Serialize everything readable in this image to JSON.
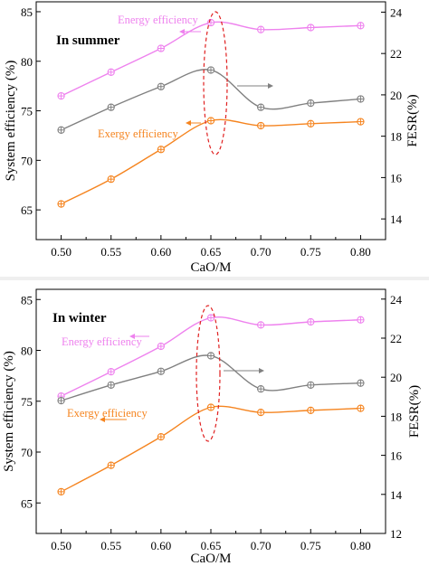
{
  "chart_data": [
    {
      "type": "line",
      "annotation": "In summer",
      "xlabel": "CaO/M",
      "ylabel": "System efficiency (%)",
      "y2label": "FESR(%)",
      "xlim": [
        0.475,
        0.825
      ],
      "ylim": [
        62,
        86
      ],
      "y2lim": [
        13.0,
        24.5
      ],
      "x_ticks": [
        "0.50",
        "0.55",
        "0.60",
        "0.65",
        "0.70",
        "0.75",
        "0.80"
      ],
      "y_ticks": [
        "65",
        "70",
        "75",
        "80",
        "85"
      ],
      "y2_ticks": [
        "14",
        "16",
        "18",
        "20",
        "22",
        "24"
      ],
      "x": [
        0.5,
        0.55,
        0.6,
        0.65,
        0.7,
        0.75,
        0.8
      ],
      "series": [
        {
          "name": "Energy efficiency",
          "axis": "left",
          "color": "#ee82ee",
          "values": [
            76.5,
            78.9,
            81.3,
            83.9,
            83.2,
            83.4,
            83.6
          ]
        },
        {
          "axis": "right",
          "color": "#808080",
          "values": [
            18.3,
            19.4,
            20.4,
            21.2,
            19.4,
            19.6,
            19.8
          ]
        },
        {
          "name": "Exergy efficiency",
          "axis": "left",
          "color": "#f5841f",
          "values": [
            65.6,
            68.1,
            71.1,
            74.0,
            73.5,
            73.7,
            73.9
          ]
        }
      ]
    },
    {
      "type": "line",
      "annotation": "In winter",
      "xlabel": "CaO/M",
      "ylabel": "System efficiency (%)",
      "y2label": "FESR(%)",
      "xlim": [
        0.475,
        0.825
      ],
      "ylim": [
        62,
        86
      ],
      "y2lim": [
        12,
        24.5
      ],
      "x_ticks": [
        "0.50",
        "0.55",
        "0.60",
        "0.65",
        "0.70",
        "0.75",
        "0.80"
      ],
      "y_ticks": [
        "65",
        "70",
        "75",
        "80",
        "85"
      ],
      "y2_ticks": [
        "12",
        "14",
        "16",
        "18",
        "20",
        "22",
        "24"
      ],
      "x": [
        0.5,
        0.55,
        0.6,
        0.65,
        0.7,
        0.75,
        0.8
      ],
      "series": [
        {
          "name": "Energy efficiency",
          "axis": "left",
          "color": "#ee82ee",
          "values": [
            75.5,
            77.9,
            80.4,
            83.2,
            82.5,
            82.8,
            83.0
          ]
        },
        {
          "axis": "right",
          "color": "#808080",
          "values": [
            18.8,
            19.6,
            20.3,
            21.1,
            19.4,
            19.6,
            19.7
          ]
        },
        {
          "name": "Exergy efficiency",
          "axis": "left",
          "color": "#f5841f",
          "values": [
            66.1,
            68.7,
            71.5,
            74.4,
            73.9,
            74.1,
            74.3
          ]
        }
      ]
    }
  ]
}
